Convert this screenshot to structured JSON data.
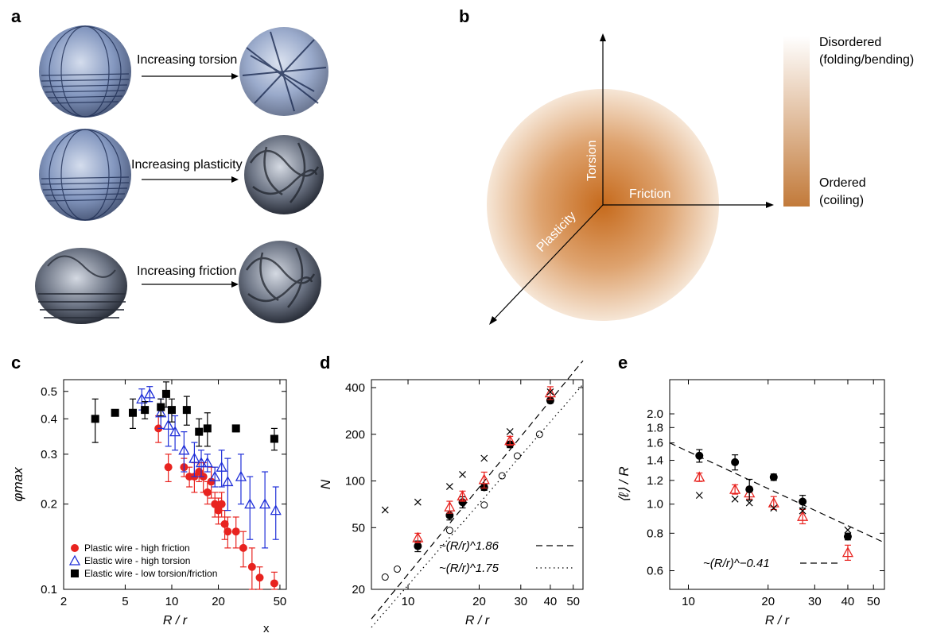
{
  "panels": {
    "a": {
      "label": "a",
      "rows": [
        {
          "caption": "Increasing torsion"
        },
        {
          "caption": "Increasing plasticity"
        },
        {
          "caption": "Increasing friction"
        }
      ]
    },
    "b": {
      "label": "b",
      "axes": {
        "torsion": "Torsion",
        "friction": "Friction",
        "plasticity": "Plasticity"
      },
      "colorbar": {
        "top_label": [
          "Disordered",
          "(folding/bending)"
        ],
        "bottom_label": [
          "Ordered",
          "(coiling)"
        ],
        "colors": [
          "#ffffff",
          "#c27a3a"
        ]
      }
    },
    "c": {
      "label": "c",
      "stray_text": "x"
    },
    "d": {
      "label": "d"
    },
    "e": {
      "label": "e"
    }
  },
  "chart_data": [
    {
      "id": "c",
      "type": "scatter",
      "xlabel": "R / r",
      "ylabel": "φmax",
      "xscale": "log",
      "yscale": "log",
      "xlim": [
        2,
        55
      ],
      "ylim": [
        0.1,
        0.55
      ],
      "xticks": [
        2,
        5,
        10,
        20,
        50
      ],
      "yticks": [
        0.1,
        0.2,
        0.3,
        0.4,
        0.5
      ],
      "legend_position": "bottom-left",
      "series": [
        {
          "name": "Plastic wire - high friction",
          "marker": "circle-filled",
          "color": "#e8231f",
          "points": [
            [
              8.2,
              0.37,
              0.04
            ],
            [
              9.5,
              0.27,
              0.03
            ],
            [
              12,
              0.27,
              0.02
            ],
            [
              13,
              0.25,
              0.02
            ],
            [
              14,
              0.25,
              0.03
            ],
            [
              15,
              0.26,
              0.02
            ],
            [
              16,
              0.25,
              0.03
            ],
            [
              17,
              0.22,
              0.02
            ],
            [
              18,
              0.24,
              0.03
            ],
            [
              19,
              0.2,
              0.02
            ],
            [
              20,
              0.19,
              0.02
            ],
            [
              21,
              0.2,
              0.02
            ],
            [
              22,
              0.17,
              0.02
            ],
            [
              23,
              0.16,
              0.02
            ],
            [
              26,
              0.16,
              0.02
            ],
            [
              29,
              0.14,
              0.02
            ],
            [
              33,
              0.12,
              0.02
            ],
            [
              37,
              0.11,
              0.01
            ],
            [
              46,
              0.105,
              0.01
            ]
          ]
        },
        {
          "name": "Elastic wire - high torsion",
          "marker": "triangle-open",
          "color": "#1f2fd8",
          "points": [
            [
              6.4,
              0.47,
              0.04
            ],
            [
              7.2,
              0.49,
              0.03
            ],
            [
              8.5,
              0.42,
              0.05
            ],
            [
              9.5,
              0.38,
              0.06
            ],
            [
              10.5,
              0.36,
              0.05
            ],
            [
              12,
              0.31,
              0.05
            ],
            [
              14,
              0.29,
              0.04
            ],
            [
              15.5,
              0.28,
              0.03
            ],
            [
              17,
              0.28,
              0.02
            ],
            [
              19,
              0.25,
              0.02
            ],
            [
              21,
              0.27,
              0.04
            ],
            [
              23,
              0.24,
              0.05
            ],
            [
              28,
              0.25,
              0.05
            ],
            [
              32,
              0.2,
              0.05
            ],
            [
              40,
              0.2,
              0.06
            ],
            [
              47,
              0.19,
              0.04
            ]
          ]
        },
        {
          "name": "Elastic wire - low torsion/friction",
          "marker": "square-filled",
          "color": "#000000",
          "points": [
            [
              3.2,
              0.4,
              0.07
            ],
            [
              4.3,
              0.42,
              0.01
            ],
            [
              5.6,
              0.42,
              0.05
            ],
            [
              6.7,
              0.43,
              0.03
            ],
            [
              8.5,
              0.44,
              0.03
            ],
            [
              9.2,
              0.49,
              0.05
            ],
            [
              10,
              0.43,
              0.04
            ],
            [
              12.5,
              0.43,
              0.05
            ],
            [
              15,
              0.36,
              0.04
            ],
            [
              17,
              0.37,
              0.05
            ],
            [
              26,
              0.37,
              0.01
            ],
            [
              46,
              0.34,
              0.03
            ]
          ]
        }
      ]
    },
    {
      "id": "d",
      "type": "scatter",
      "xlabel": "R / r",
      "ylabel": "N",
      "xscale": "log",
      "yscale": "log",
      "xlim": [
        7,
        55
      ],
      "ylim": [
        20,
        450
      ],
      "xticks": [
        10,
        20,
        30,
        40,
        50
      ],
      "yticks": [
        20,
        50,
        100,
        200,
        400
      ],
      "series": [
        {
          "name": "filled circles",
          "marker": "circle-filled",
          "color": "#000000",
          "points": [
            [
              11,
              38,
              3
            ],
            [
              15,
              60,
              4
            ],
            [
              17,
              73,
              6
            ],
            [
              21,
              91,
              4
            ],
            [
              27,
              172,
              8
            ],
            [
              40,
              330,
              12
            ]
          ]
        },
        {
          "name": "red triangles",
          "marker": "triangle-open",
          "color": "#e8231f",
          "points": [
            [
              11,
              43,
              3
            ],
            [
              15,
              68,
              6
            ],
            [
              17,
              80,
              6
            ],
            [
              21,
              102,
              12
            ],
            [
              27,
              182,
              12
            ],
            [
              40,
              370,
              35
            ]
          ]
        },
        {
          "name": "crosses",
          "marker": "cross",
          "color": "#000000",
          "points": [
            [
              8,
              65
            ],
            [
              11,
              73
            ],
            [
              15,
              92
            ],
            [
              17,
              110
            ],
            [
              21,
              140
            ],
            [
              27,
              208
            ],
            [
              40,
              375
            ]
          ]
        },
        {
          "name": "open circles",
          "marker": "circle-open",
          "color": "#000000",
          "points": [
            [
              8,
              24
            ],
            [
              9,
              27
            ],
            [
              15,
              48
            ],
            [
              21,
              70
            ],
            [
              25,
              108
            ],
            [
              29,
              145
            ],
            [
              36,
              200
            ]
          ]
        }
      ],
      "fits": [
        {
          "label": "~(R/r)^1.86",
          "style": "dashed",
          "exponent": 1.86,
          "anchor": [
            40,
            330
          ]
        },
        {
          "label": "~(R/r)^1.75",
          "style": "dotted",
          "exponent": 1.75,
          "anchor": [
            36,
            200
          ]
        }
      ]
    },
    {
      "id": "e",
      "type": "scatter",
      "xlabel": "R / r",
      "ylabel": "⟨ℓ⟩ / R",
      "xscale": "log",
      "yscale": "log",
      "xlim": [
        8.5,
        55
      ],
      "ylim": [
        0.52,
        2.6
      ],
      "xticks": [
        10,
        20,
        30,
        40,
        50
      ],
      "yticks": [
        0.6,
        0.8,
        1.0,
        1.2,
        1.4,
        1.6,
        1.8,
        2.0
      ],
      "series": [
        {
          "name": "filled circles",
          "marker": "circle-filled",
          "color": "#000000",
          "points": [
            [
              11,
              1.45,
              0.07
            ],
            [
              15,
              1.38,
              0.08
            ],
            [
              21,
              1.23,
              0.03
            ],
            [
              27,
              1.02,
              0.05
            ],
            [
              40,
              0.78,
              0.02
            ]
          ]
        },
        {
          "name": "red triangles",
          "marker": "triangle-open",
          "color": "#e8231f",
          "points": [
            [
              11,
              1.23,
              0.04
            ],
            [
              15,
              1.12,
              0.04
            ],
            [
              17,
              1.09,
              0.05
            ],
            [
              21,
              1.01,
              0.05
            ],
            [
              27,
              0.91,
              0.05
            ],
            [
              40,
              0.69,
              0.04
            ]
          ]
        },
        {
          "name": "crosses",
          "marker": "cross",
          "color": "#000000",
          "points": [
            [
              11,
              1.07
            ],
            [
              15,
              1.04
            ],
            [
              17,
              1.01
            ],
            [
              21,
              0.97
            ],
            [
              27,
              0.95
            ],
            [
              40,
              0.82
            ]
          ]
        },
        {
          "name": "small circles",
          "marker": "circle-filled",
          "color": "#000000",
          "points": [
            [
              17,
              1.12,
              0.09
            ]
          ]
        }
      ],
      "fits": [
        {
          "label": "~(R/r)^−0.41",
          "style": "dashed",
          "exponent": -0.41,
          "anchor": [
            8.5,
            1.6
          ]
        }
      ]
    }
  ]
}
